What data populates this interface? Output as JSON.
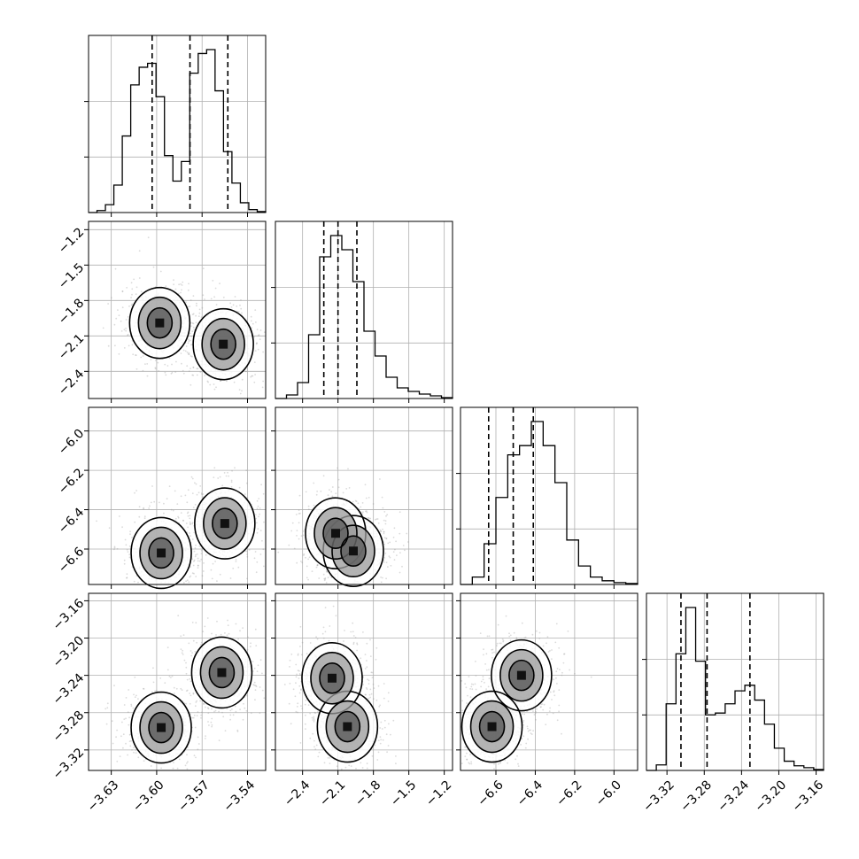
{
  "chart_data": {
    "type": "scatter",
    "title": "",
    "variables": [
      {
        "index": 0,
        "range": [
          -3.645,
          -3.528
        ],
        "ticks": [
          -3.63,
          -3.6,
          -3.57,
          -3.54
        ],
        "tick_labels": [
          "−3.63",
          "−3.60",
          "−3.57",
          "−3.54"
        ],
        "quantiles": [
          -3.603,
          -3.578,
          -3.553
        ]
      },
      {
        "index": 1,
        "range": [
          -2.63,
          -1.13
        ],
        "ticks": [
          -2.4,
          -2.1,
          -1.8,
          -1.5,
          -1.2
        ],
        "tick_labels": [
          "−2.4",
          "−2.1",
          "−1.8",
          "−1.5",
          "−1.2"
        ],
        "quantiles": [
          -2.22,
          -2.1,
          -1.94
        ]
      },
      {
        "index": 2,
        "range": [
          -6.78,
          -5.88
        ],
        "ticks": [
          -6.6,
          -6.4,
          -6.2,
          -6.0
        ],
        "tick_labels": [
          "−6.6",
          "−6.4",
          "−6.2",
          "−6.0"
        ],
        "quantiles": [
          -6.637,
          -6.512,
          -6.41
        ]
      },
      {
        "index": 3,
        "range": [
          -3.342,
          -3.152
        ],
        "ticks": [
          -3.32,
          -3.28,
          -3.24,
          -3.2,
          -3.16
        ],
        "tick_labels": [
          "−3.32",
          "−3.28",
          "−3.24",
          "−3.20",
          "−3.16"
        ],
        "quantiles": [
          -3.305,
          -3.277,
          -3.231
        ]
      }
    ],
    "histograms": [
      {
        "variable": 0,
        "counts": [
          0,
          2,
          8,
          28,
          78,
          130,
          148,
          152,
          118,
          58,
          32,
          52,
          142,
          162,
          166,
          124,
          62,
          30,
          10,
          3,
          1
        ]
      },
      {
        "variable": 1,
        "counts": [
          0,
          4,
          18,
          72,
          160,
          184,
          168,
          132,
          76,
          48,
          24,
          12,
          8,
          5,
          3,
          1
        ]
      },
      {
        "variable": 2,
        "counts": [
          0,
          8,
          44,
          94,
          140,
          150,
          176,
          150,
          110,
          48,
          20,
          8,
          4,
          2,
          1
        ]
      },
      {
        "variable": 3,
        "counts": [
          0,
          6,
          72,
          126,
          176,
          118,
          60,
          62,
          72,
          86,
          92,
          76,
          50,
          24,
          10,
          5,
          3,
          1
        ]
      }
    ],
    "contours_2d": [
      {
        "x_var": 0,
        "y_var": 1,
        "modes": [
          {
            "x": -3.598,
            "y": -1.99
          },
          {
            "x": -3.556,
            "y": -2.17
          }
        ]
      },
      {
        "x_var": 0,
        "y_var": 2,
        "modes": [
          {
            "x": -3.597,
            "y": -6.62
          },
          {
            "x": -3.555,
            "y": -6.47
          }
        ]
      },
      {
        "x_var": 1,
        "y_var": 2,
        "modes": [
          {
            "x": -2.12,
            "y": -6.52
          },
          {
            "x": -1.97,
            "y": -6.61
          }
        ]
      },
      {
        "x_var": 0,
        "y_var": 3,
        "modes": [
          {
            "x": -3.597,
            "y": -3.296
          },
          {
            "x": -3.557,
            "y": -3.237
          }
        ]
      },
      {
        "x_var": 1,
        "y_var": 3,
        "modes": [
          {
            "x": -2.15,
            "y": -3.243
          },
          {
            "x": -2.02,
            "y": -3.295
          }
        ]
      },
      {
        "x_var": 2,
        "y_var": 3,
        "modes": [
          {
            "x": -6.62,
            "y": -3.295
          },
          {
            "x": -6.47,
            "y": -3.24
          }
        ]
      }
    ]
  }
}
